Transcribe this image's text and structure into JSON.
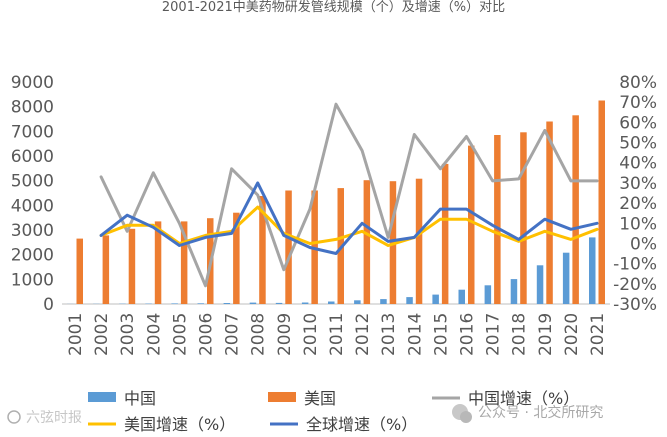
{
  "chart_data": {
    "type": "bar",
    "title": "2001-2021中美药物研发管线规模（个）及增速（%）对比",
    "categories": [
      "2001",
      "2002",
      "2003",
      "2004",
      "2005",
      "2006",
      "2007",
      "2008",
      "2009",
      "2010",
      "2011",
      "2012",
      "2013",
      "2014",
      "2015",
      "2016",
      "2017",
      "2018",
      "2019",
      "2020",
      "2021"
    ],
    "left_axis": {
      "ylim": [
        0,
        9000
      ],
      "ticks": [
        0,
        1000,
        2000,
        3000,
        4000,
        5000,
        6000,
        7000,
        8000,
        9000
      ],
      "tick_labels": [
        "0",
        "1000",
        "2000",
        "3000",
        "4000",
        "5000",
        "6000",
        "7000",
        "8000",
        "9000"
      ]
    },
    "right_axis": {
      "ylim": [
        -30,
        80
      ],
      "ticks": [
        -30,
        -20,
        -10,
        0,
        10,
        20,
        30,
        40,
        50,
        60,
        70,
        80
      ],
      "tick_labels": [
        "-30%",
        "-20%",
        "-10%",
        "0%",
        "10%",
        "20%",
        "30%",
        "40%",
        "50%",
        "60%",
        "70%",
        "80%"
      ]
    },
    "series": [
      {
        "name": "中国",
        "type": "bar",
        "axis": "left",
        "color": "#5B9BD5",
        "values": [
          5,
          8,
          12,
          18,
          25,
          30,
          40,
          55,
          45,
          60,
          100,
          150,
          200,
          280,
          380,
          580,
          760,
          1010,
          1570,
          2080,
          2700
        ]
      },
      {
        "name": "美国",
        "type": "bar",
        "axis": "left",
        "color": "#ED7D31",
        "values": [
          2650,
          2780,
          3050,
          3350,
          3350,
          3480,
          3700,
          4380,
          4600,
          4600,
          4700,
          5020,
          4980,
          5080,
          5680,
          6420,
          6850,
          6960,
          7400,
          7650,
          8250
        ]
      },
      {
        "name": "中国增速（%）",
        "type": "line",
        "axis": "right",
        "color": "#A5A5A5",
        "values": [
          null,
          33,
          6,
          35,
          10,
          -21,
          37,
          24,
          -13,
          17,
          69,
          46,
          3,
          54,
          37,
          53,
          31,
          32,
          56,
          31,
          31
        ]
      },
      {
        "name": "美国增速（%）",
        "type": "line",
        "axis": "right",
        "color": "#FFC000",
        "values": [
          null,
          4,
          9,
          9,
          0,
          4,
          6,
          18,
          5,
          0,
          2,
          6,
          -1,
          3,
          12,
          12,
          6,
          1,
          6,
          2,
          7
        ]
      },
      {
        "name": "全球增速（%）",
        "type": "line",
        "axis": "right",
        "color": "#4472C4",
        "values": [
          null,
          4,
          14,
          8,
          -1,
          3,
          5,
          30,
          4,
          -2,
          -5,
          10,
          1,
          3,
          17,
          17,
          9,
          2,
          12,
          7,
          10
        ]
      }
    ],
    "legend_position": "bottom"
  },
  "watermarks": {
    "left": "六弦时报",
    "right": "公众号 · 北交所研究"
  }
}
